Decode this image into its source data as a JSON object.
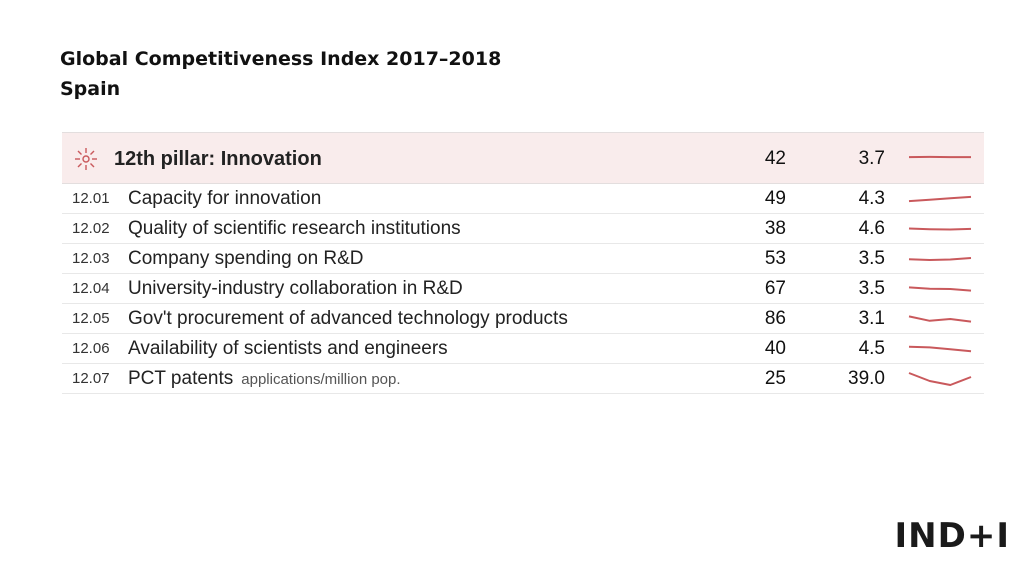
{
  "title": {
    "line1": "Global Competitiveness Index 2017–2018",
    "line2": "Spain"
  },
  "pillar": {
    "icon": "sun-burst-icon",
    "label": "12th pillar: Innovation",
    "rank": "42",
    "score": "3.7",
    "trend": [
      3.7,
      3.71,
      3.7,
      3.7
    ]
  },
  "rows": [
    {
      "code": "12.01",
      "label": "Capacity for innovation",
      "unit": "",
      "rank": "49",
      "score": "4.3",
      "trend": [
        4.0,
        4.1,
        4.2,
        4.3
      ]
    },
    {
      "code": "12.02",
      "label": "Quality of scientific research institutions",
      "unit": "",
      "rank": "38",
      "score": "4.6",
      "trend": [
        4.65,
        4.6,
        4.58,
        4.62
      ]
    },
    {
      "code": "12.03",
      "label": "Company spending on R&D",
      "unit": "",
      "rank": "53",
      "score": "3.5",
      "trend": [
        3.45,
        3.4,
        3.43,
        3.52
      ]
    },
    {
      "code": "12.04",
      "label": "University-industry collaboration in R&D",
      "unit": "",
      "rank": "67",
      "score": "3.5",
      "trend": [
        3.7,
        3.62,
        3.6,
        3.5
      ]
    },
    {
      "code": "12.05",
      "label": "Gov't procurement of advanced technology products",
      "unit": "",
      "rank": "86",
      "score": "3.1",
      "trend": [
        3.4,
        3.15,
        3.25,
        3.1
      ]
    },
    {
      "code": "12.06",
      "label": "Availability of scientists and engineers",
      "unit": "",
      "rank": "40",
      "score": "4.5",
      "trend": [
        4.8,
        4.75,
        4.6,
        4.45
      ]
    },
    {
      "code": "12.07",
      "label": "PCT patents",
      "unit": "applications/million pop.",
      "rank": "25",
      "score": "39.0",
      "trend": [
        42.0,
        36.0,
        33.0,
        39.0
      ]
    }
  ],
  "colors": {
    "sparkline": "#c9595c",
    "header_bg": "#f9ecec"
  },
  "logo": "IND+I"
}
